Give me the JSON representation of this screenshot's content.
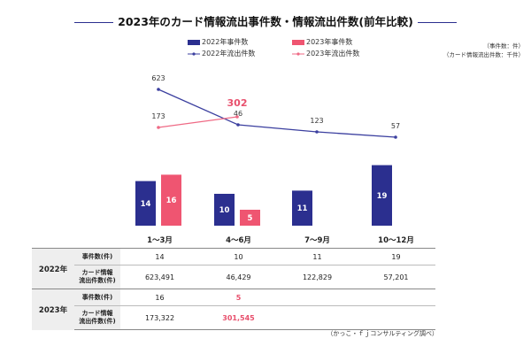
{
  "title": "2023年のカード情報流出事件数・情報流出件数(前年比較)",
  "units": [
    "（事件数：件）",
    "（カード情報流出件数：千件）"
  ],
  "footnote": "（かっこ・ｆｊコンサルティング調べ）",
  "colors": {
    "bar2022": "#2b2f8f",
    "bar2023": "#ef5571",
    "line2022": "#3b3f9f",
    "line2023": "#ef6a85",
    "highlight": "#e8506d"
  },
  "chart_data": {
    "type": "bar+line",
    "categories": [
      "1～3月",
      "4～6月",
      "7～9月",
      "10～12月"
    ],
    "legend": [
      "2022年事件数",
      "2023年事件数",
      "2022年流出件数",
      "2023年流出件数"
    ],
    "series": [
      {
        "name": "2022年事件数",
        "type": "bar",
        "values": [
          14,
          10,
          11,
          19
        ]
      },
      {
        "name": "2023年事件数",
        "type": "bar",
        "values": [
          16,
          5,
          null,
          null
        ]
      },
      {
        "name": "2022年流出件数",
        "type": "line",
        "values": [
          623,
          46,
          123,
          57
        ]
      },
      {
        "name": "2023年流出件数",
        "type": "line",
        "values": [
          173,
          302,
          null,
          null
        ]
      }
    ]
  },
  "table": {
    "years": [
      "2022年",
      "2023年"
    ],
    "row_labels": [
      "事件数(件)",
      "カード情報\n流出件数(件)"
    ],
    "rows": {
      "y2022_cases": [
        "14",
        "10",
        "11",
        "19"
      ],
      "y2022_leaks": [
        "623,491",
        "46,429",
        "122,829",
        "57,201"
      ],
      "y2023_cases": [
        "16",
        "5",
        "",
        ""
      ],
      "y2023_leaks": [
        "173,322",
        "301,545",
        "",
        ""
      ]
    }
  }
}
